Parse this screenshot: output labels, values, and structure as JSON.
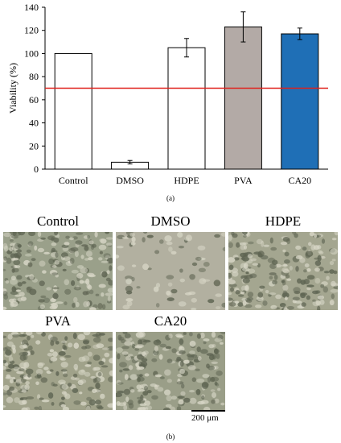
{
  "chart_data": {
    "type": "bar",
    "categories": [
      "Control",
      "DMSO",
      "HDPE",
      "PVA",
      "CA20"
    ],
    "values": [
      100,
      6,
      105,
      123,
      117
    ],
    "errors": [
      0,
      1.5,
      8,
      13,
      5
    ],
    "bar_colors": [
      "#ffffff",
      "#ffffff",
      "#ffffff",
      "#b3aaa6",
      "#1f6fb6"
    ],
    "ylabel": "Viability (%)",
    "ylim": [
      0,
      140
    ],
    "yticks": [
      "0",
      "20",
      "40",
      "60",
      "80",
      "100",
      "120",
      "140"
    ],
    "threshold": 70,
    "threshold_color": "#e0201b"
  },
  "labels": {
    "panel_a": "(a)",
    "panel_b": "(b)",
    "scale_bar": "200 μm"
  },
  "micrographs": [
    {
      "title": "Control",
      "tone": "#9aa08a"
    },
    {
      "title": "DMSO",
      "tone": "#b2b0a0"
    },
    {
      "title": "HDPE",
      "tone": "#a4a690"
    },
    {
      "title": "PVA",
      "tone": "#a0a28a"
    },
    {
      "title": "CA20",
      "tone": "#9a9e88"
    }
  ]
}
